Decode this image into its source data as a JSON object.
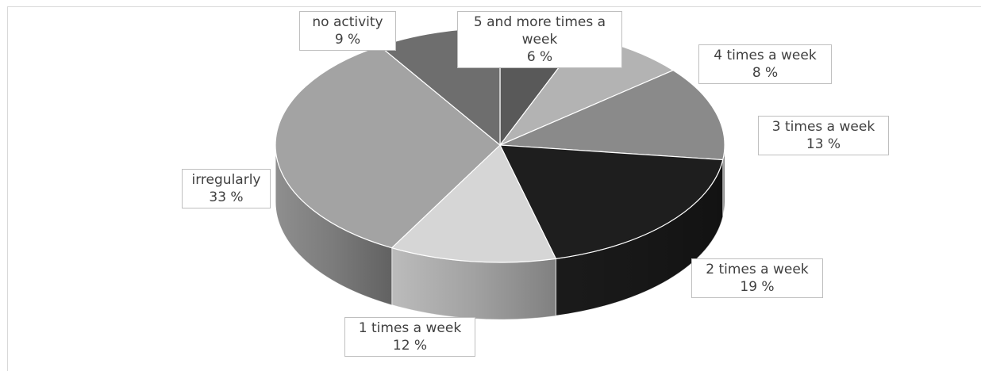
{
  "chart_data": {
    "type": "pie",
    "style": "3d",
    "start_angle_deg": -90,
    "direction": "clockwise",
    "slices": [
      {
        "label": "5 and more times a week",
        "value": 6,
        "display": "6 %",
        "color": "#595959"
      },
      {
        "label": "4 times a week",
        "value": 8,
        "display": "8 %",
        "color": "#b3b3b3"
      },
      {
        "label": "3 times a week",
        "value": 13,
        "display": "13 %",
        "color": "#8a8a8a"
      },
      {
        "label": "2 times a week",
        "value": 19,
        "display": "19 %",
        "color": "#1e1e1e"
      },
      {
        "label": "1 times a week",
        "value": 12,
        "display": "12 %",
        "color": "#d6d6d6"
      },
      {
        "label": "irregularly",
        "value": 33,
        "display": "33 %",
        "color": "#a3a3a3"
      },
      {
        "label": "no activity",
        "value": 9,
        "display": "9 %",
        "color": "#6e6e6e"
      }
    ],
    "legend": "none"
  }
}
